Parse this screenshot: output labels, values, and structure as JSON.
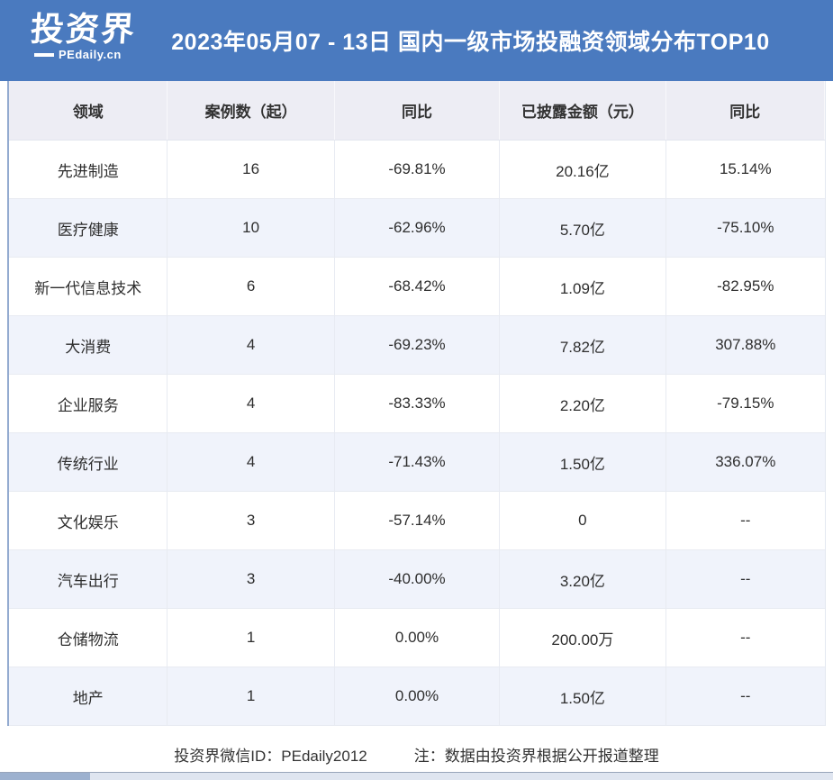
{
  "header": {
    "logo": {
      "brand": "投资界",
      "subbrand": "PEdaily.cn"
    },
    "title": "2023年05月07 - 13日 国内一级市场投融资领域分布TOP10"
  },
  "chart_data": {
    "type": "table",
    "title": "2023年05月07 - 13日 国内一级市场投融资领域分布TOP10",
    "columns": [
      "领域",
      "案例数（起）",
      "同比",
      "已披露金额（元）",
      "同比"
    ],
    "rows": [
      [
        "先进制造",
        "16",
        "-69.81%",
        "20.16亿",
        "15.14%"
      ],
      [
        "医疗健康",
        "10",
        "-62.96%",
        "5.70亿",
        "-75.10%"
      ],
      [
        "新一代信息技术",
        "6",
        "-68.42%",
        "1.09亿",
        "-82.95%"
      ],
      [
        "大消费",
        "4",
        "-69.23%",
        "7.82亿",
        "307.88%"
      ],
      [
        "企业服务",
        "4",
        "-83.33%",
        "2.20亿",
        "-79.15%"
      ],
      [
        "传统行业",
        "4",
        "-71.43%",
        "1.50亿",
        "336.07%"
      ],
      [
        "文化娱乐",
        "3",
        "-57.14%",
        "0",
        "--"
      ],
      [
        "汽车出行",
        "3",
        "-40.00%",
        "3.20亿",
        "--"
      ],
      [
        "仓储物流",
        "1",
        "0.00%",
        "200.00万",
        "--"
      ],
      [
        "地产",
        "1",
        "0.00%",
        "1.50亿",
        "--"
      ]
    ]
  },
  "footer": {
    "wechat_label": "投资界微信ID：PEdaily2012",
    "note": "注：数据由投资界根据公开报道整理"
  },
  "colors": {
    "banner_blue": "#4a7abf",
    "header_row_bg": "#ededf4",
    "alt_row_bg": "#f0f3fb",
    "table_left_accent": "#93abd0",
    "body_text": "#2e2e2e"
  }
}
